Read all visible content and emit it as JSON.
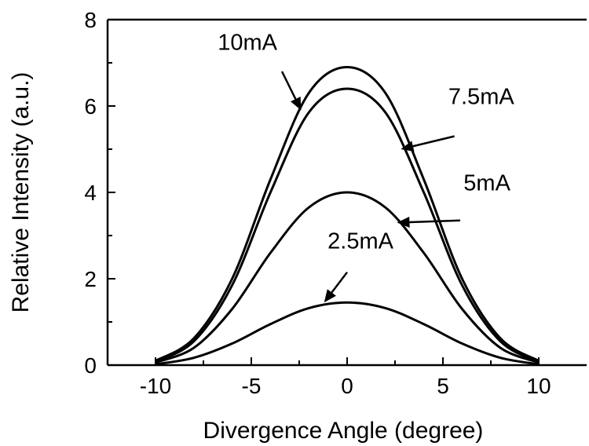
{
  "chart_data": {
    "type": "line",
    "xlabel": "Divergence Angle (degree)",
    "ylabel": "Relative Intensity (a.u.)",
    "xlim": [
      -12.5,
      12.5
    ],
    "ylim": [
      0,
      8
    ],
    "x_ticks": [
      -10,
      -5,
      0,
      5,
      10
    ],
    "x_tick_labels": [
      "-10",
      "-5",
      "0",
      "5",
      "10"
    ],
    "y_ticks": [
      0,
      2,
      4,
      6,
      8
    ],
    "y_tick_labels": [
      "0",
      "2",
      "4",
      "6",
      "8"
    ],
    "series": [
      {
        "name": "10mA",
        "x": [
          -10,
          -8,
          -6,
          -4,
          -2,
          0,
          2,
          4,
          6,
          8,
          10
        ],
        "y": [
          0.1,
          0.62,
          2.0,
          4.3,
          6.3,
          6.9,
          6.3,
          4.3,
          2.0,
          0.62,
          0.1
        ]
      },
      {
        "name": "7.5mA",
        "x": [
          -10,
          -8,
          -6,
          -4,
          -2,
          0,
          2,
          4,
          6,
          8,
          10
        ],
        "y": [
          0.08,
          0.55,
          1.85,
          4.0,
          5.85,
          6.4,
          5.85,
          4.0,
          1.85,
          0.55,
          0.08
        ]
      },
      {
        "name": "5mA",
        "x": [
          -10,
          -8,
          -6,
          -4,
          -2,
          0,
          2,
          4,
          6,
          8,
          10
        ],
        "y": [
          0.06,
          0.4,
          1.3,
          2.6,
          3.65,
          4.0,
          3.65,
          2.6,
          1.3,
          0.4,
          0.06
        ]
      },
      {
        "name": "2.5mA",
        "x": [
          -10,
          -8,
          -6,
          -4,
          -2,
          0,
          2,
          4,
          6,
          8,
          10
        ],
        "y": [
          0.02,
          0.17,
          0.5,
          0.95,
          1.32,
          1.45,
          1.32,
          0.95,
          0.5,
          0.17,
          0.02
        ]
      }
    ],
    "annotations": [
      {
        "text": "10mA",
        "series": "10mA",
        "label_at": [
          -5.2,
          7.3
        ],
        "arrow_from": [
          -3.4,
          6.8
        ],
        "arrow_to": [
          -2.4,
          5.9
        ]
      },
      {
        "text": "7.5mA",
        "series": "7.5mA",
        "label_at": [
          7.0,
          6.05
        ],
        "arrow_from": [
          5.6,
          5.3
        ],
        "arrow_to": [
          2.8,
          5.0
        ]
      },
      {
        "text": "5mA",
        "series": "5mA",
        "label_at": [
          7.3,
          4.05
        ],
        "arrow_from": [
          5.9,
          3.35
        ],
        "arrow_to": [
          2.6,
          3.3
        ]
      },
      {
        "text": "2.5mA",
        "series": "2.5mA",
        "label_at": [
          0.7,
          2.7
        ],
        "arrow_from": [
          0.0,
          2.15
        ],
        "arrow_to": [
          -1.2,
          1.45
        ]
      }
    ]
  }
}
